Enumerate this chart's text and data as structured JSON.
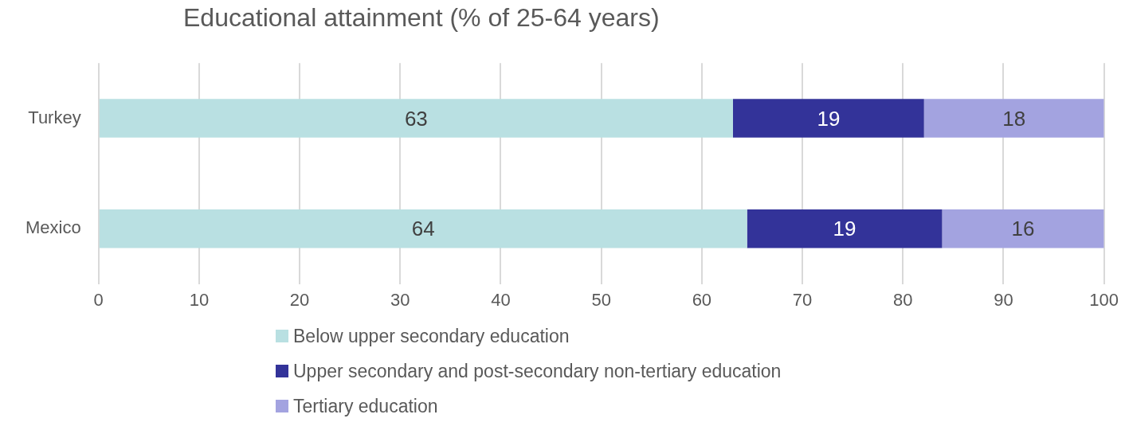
{
  "chart_data": {
    "type": "bar",
    "orientation": "horizontal",
    "stacked": true,
    "title": "Educational attainment (% of 25-64 years)",
    "categories": [
      "Turkey",
      "Mexico"
    ],
    "series": [
      {
        "name": "Below upper secondary education",
        "color": "#b9e0e2",
        "values": [
          63.1,
          64.5
        ],
        "value_labels": [
          "63",
          "64"
        ]
      },
      {
        "name": "Upper secondary and post-secondary non-tertiary education",
        "color": "#333399",
        "values": [
          19.0,
          19.4
        ],
        "value_labels": [
          "19",
          "19"
        ]
      },
      {
        "name": "Tertiary education",
        "color": "#a3a3e0",
        "values": [
          17.9,
          16.1
        ],
        "value_labels": [
          "18",
          "16"
        ]
      }
    ],
    "xlim": [
      0,
      100
    ],
    "xticks": [
      0,
      10,
      20,
      30,
      40,
      50,
      60,
      70,
      80,
      90,
      100
    ],
    "grid": "x",
    "legend": "bottom"
  }
}
